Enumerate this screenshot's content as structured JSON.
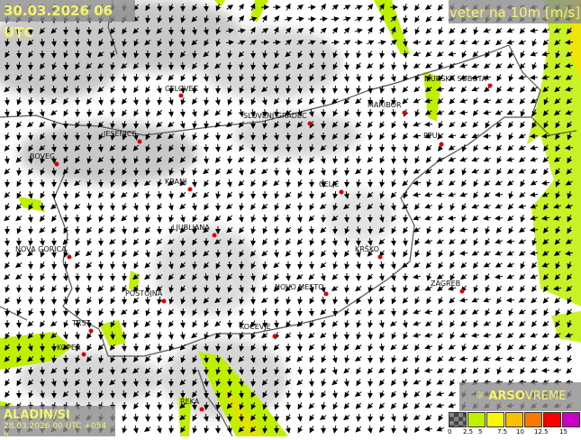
{
  "header": {
    "datetime": "30.03.2026 06 UTC",
    "parameter": "veter na 10m [m/s]"
  },
  "model": {
    "name": "ALADIN/SI",
    "run": "28.03.2026 00 UTC +054 h"
  },
  "brand": {
    "logo_icon": "sun-icon",
    "arso": "ARSO",
    "vreme": "VREME"
  },
  "legend": {
    "ticks": [
      "0",
      "2.5",
      "5",
      "7.5",
      "10",
      "12.5",
      "15"
    ],
    "colors": [
      "#555555",
      "#bef000",
      "#f8f800",
      "#f8c000",
      "#f87800",
      "#f80000",
      "#c800c8"
    ]
  },
  "cities": [
    {
      "name": "CELOVEC"
    },
    {
      "name": "SLOVENJ GRADEC"
    },
    {
      "name": "MARIBOR"
    },
    {
      "name": "MURSKA SOBOTA"
    },
    {
      "name": "PTUJ"
    },
    {
      "name": "JESENICE"
    },
    {
      "name": "BOVEC"
    },
    {
      "name": "KRANJ"
    },
    {
      "name": "CELJE"
    },
    {
      "name": "LJUBLJANA"
    },
    {
      "name": "KRŠKO"
    },
    {
      "name": "NOVA GORICA"
    },
    {
      "name": "POSTOJNA"
    },
    {
      "name": "NOVO MESTO"
    },
    {
      "name": "ZAGREB"
    },
    {
      "name": "TRST"
    },
    {
      "name": "KOČEVJE"
    },
    {
      "name": "KOPER"
    },
    {
      "name": "REKA"
    }
  ],
  "colors": {
    "city_marker": "#e00000",
    "wind_low": "#bef000",
    "wind_mid": "#f8f800",
    "panel_text": "#f5f56a"
  }
}
